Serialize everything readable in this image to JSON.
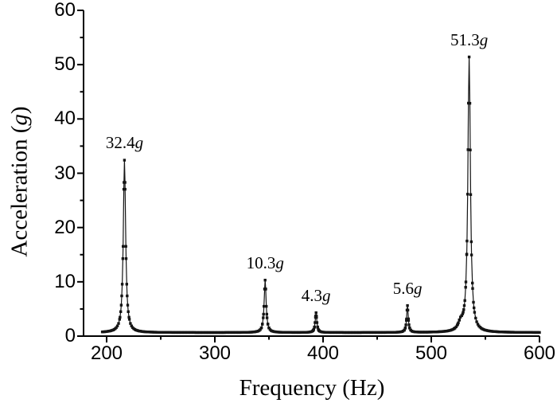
{
  "figure": {
    "background_color": "#ffffff",
    "axis_color": "#000000",
    "curve_color": "#141414",
    "text_color": "#000000"
  },
  "labels": {
    "xlabel": "Frequency (Hz)",
    "ylabel_pre": "Acceleration (",
    "ylabel_italic": "g",
    "ylabel_post": ")"
  },
  "chart_data": {
    "type": "line",
    "title": "",
    "xlabel": "Frequency (Hz)",
    "ylabel": "Acceleration (g)",
    "xlim": [
      180,
      600
    ],
    "ylim": [
      0,
      60
    ],
    "x_ticks": [
      "200",
      "300",
      "400",
      "500",
      "600"
    ],
    "x_tick_values": [
      200,
      300,
      400,
      500,
      600
    ],
    "x_minor_tick_values": [
      250,
      350,
      450,
      550
    ],
    "y_ticks": [
      "0",
      "10",
      "20",
      "30",
      "40",
      "50",
      "60"
    ],
    "y_tick_values": [
      0,
      10,
      20,
      30,
      40,
      50,
      60
    ],
    "y_minor_tick_values": [
      5,
      15,
      25,
      35,
      45,
      55
    ],
    "grid": false,
    "legend": false,
    "marker": "square",
    "baseline_g": 0.65,
    "data_start_hz": 196,
    "data_end_hz": 600,
    "peaks": [
      {
        "frequency_hz": 216.5,
        "amplitude_g": 32.4,
        "label": "32.4g",
        "width_hz": 1.3
      },
      {
        "frequency_hz": 346.5,
        "amplitude_g": 10.3,
        "label": "10.3g",
        "width_hz": 1.1
      },
      {
        "frequency_hz": 393.5,
        "amplitude_g": 4.3,
        "label": "4.3g",
        "width_hz": 0.9
      },
      {
        "frequency_hz": 478.0,
        "amplitude_g": 5.6,
        "label": "5.6g",
        "width_hz": 0.9
      },
      {
        "frequency_hz": 527.0,
        "amplitude_g": 2.0,
        "label": "",
        "width_hz": 2.5
      },
      {
        "frequency_hz": 535.0,
        "amplitude_g": 51.3,
        "label": "51.3g",
        "width_hz": 1.4
      }
    ]
  }
}
